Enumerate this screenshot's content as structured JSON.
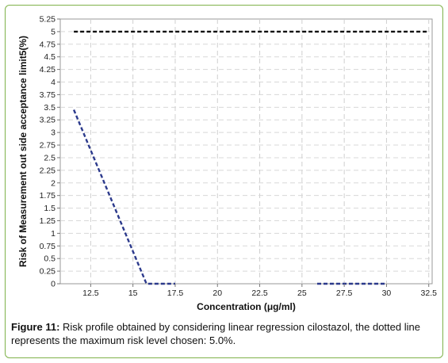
{
  "chart_data": {
    "type": "line",
    "title": "",
    "xlabel": "Concentration (μg/ml)",
    "ylabel": "Risk of Measurement out side acceptance limit5(%)",
    "xlim": [
      10.7,
      32.7
    ],
    "ylim": [
      0,
      5.25
    ],
    "x_ticks": [
      12.5,
      15,
      17.5,
      20,
      22.5,
      25,
      27.5,
      30,
      32.5
    ],
    "x_tick_labels": [
      "12.5",
      "15",
      "17.5",
      "20",
      "22.5",
      "25",
      "27.5",
      "30",
      "32.5"
    ],
    "y_ticks": [
      0,
      0.25,
      0.5,
      0.75,
      1,
      1.25,
      1.5,
      1.75,
      2,
      2.25,
      2.5,
      2.75,
      3,
      3.25,
      3.5,
      3.75,
      4,
      4.25,
      4.5,
      4.75,
      5,
      5.25
    ],
    "y_tick_labels": [
      "0",
      "0.25",
      "0.5",
      "0.75",
      "1",
      "1.25",
      "1.5",
      "1.75",
      "2",
      "2.25",
      "2.5",
      "2.75",
      "3",
      "3.25",
      "3.5",
      "3.75",
      "4",
      "4.25",
      "4.5",
      "4.75",
      "5",
      "5.25"
    ],
    "grid": true,
    "legend": "none",
    "series": [
      {
        "color": "#2c3a8c",
        "style": "dashed",
        "x": [
          11.5,
          15.8,
          17.5,
          25.9,
          30
        ],
        "y": [
          3.45,
          0,
          0,
          0,
          0
        ],
        "segments": [
          [
            0,
            2
          ],
          [
            3,
            4
          ]
        ]
      },
      {
        "color": "#111111",
        "style": "dashed",
        "x": [
          11.5,
          32.4
        ],
        "y": [
          5,
          5
        ],
        "segments": [
          [
            0,
            1
          ]
        ]
      }
    ]
  },
  "caption": {
    "lead": "Figure 11:",
    "text": " Risk profile obtained by considering linear regression cilostazol, the dotted line represents the maximum risk level chosen: 5.0%."
  }
}
